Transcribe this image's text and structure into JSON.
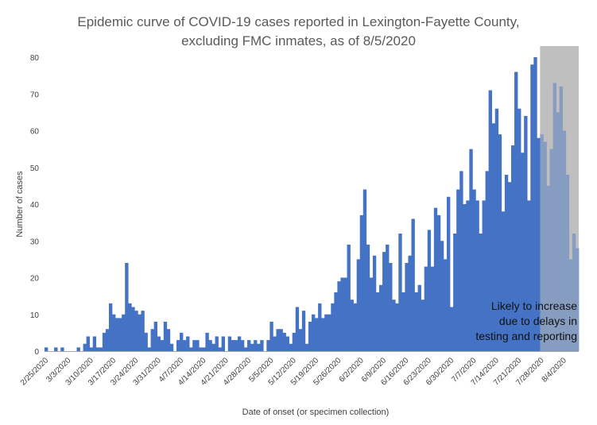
{
  "chart_data": {
    "type": "bar",
    "title": "Epidemic curve of COVID-19 cases reported in Lexington-Fayette County,",
    "subtitle": "excluding FMC inmates, as of 8/5/2020",
    "xlabel": "Date of onset (or specimen collection)",
    "ylabel": "Number of cases",
    "ylim": [
      0,
      80
    ],
    "yticks": [
      0,
      10,
      20,
      30,
      40,
      50,
      60,
      70,
      80
    ],
    "grid": false,
    "start_date": "2/25/2020",
    "x_tick_labels": [
      "2/25/2020",
      "3/3/2020",
      "3/10/2020",
      "3/17/2020",
      "3/24/2020",
      "3/31/2020",
      "4/7/2020",
      "4/14/2020",
      "4/21/2020",
      "4/28/2020",
      "5/5/2020",
      "5/12/2020",
      "5/19/2020",
      "5/26/2020",
      "6/2/2020",
      "6/9/2020",
      "6/16/2020",
      "6/23/2020",
      "6/30/2020",
      "7/7/2020",
      "7/14/2020",
      "7/21/2020",
      "7/28/2020",
      "8/4/2020"
    ],
    "bar_color": "#4472C4",
    "shaded_color": "#BFBFBF",
    "shaded_from": "7/28/2020",
    "values": [
      1,
      0,
      0,
      1,
      0,
      1,
      0,
      0,
      0,
      0,
      1,
      0,
      2,
      4,
      1,
      4,
      1,
      1,
      5,
      6,
      13,
      10,
      9,
      9,
      10,
      24,
      13,
      12,
      11,
      10,
      11,
      5,
      1,
      6,
      8,
      4,
      3,
      8,
      6,
      2,
      0,
      3,
      5,
      3,
      4,
      1,
      3,
      3,
      1,
      1,
      5,
      3,
      2,
      4,
      1,
      4,
      0,
      4,
      3,
      3,
      4,
      3,
      1,
      3,
      2,
      3,
      2,
      3,
      0,
      3,
      8,
      4,
      6,
      6,
      5,
      4,
      2,
      5,
      12,
      6,
      11,
      2,
      8,
      10,
      9,
      13,
      9,
      10,
      10,
      13,
      16,
      19,
      20,
      20,
      29,
      14,
      13,
      25,
      37,
      44,
      29,
      20,
      26,
      16,
      18,
      27,
      29,
      24,
      14,
      13,
      32,
      16,
      24,
      26,
      36,
      16,
      18,
      14,
      23,
      33,
      23,
      39,
      37,
      30,
      25,
      42,
      12,
      32,
      44,
      49,
      40,
      41,
      55,
      44,
      41,
      32,
      41,
      49,
      71,
      62,
      66,
      59,
      38,
      48,
      46,
      56,
      76,
      66,
      54,
      64,
      41,
      78,
      80,
      58,
      59,
      57,
      45,
      55,
      73,
      65,
      72,
      60,
      48,
      25,
      32,
      28
    ]
  },
  "annotation": {
    "line1": "Likely to increase",
    "line2": "due to delays in",
    "line3": "testing and reporting"
  }
}
